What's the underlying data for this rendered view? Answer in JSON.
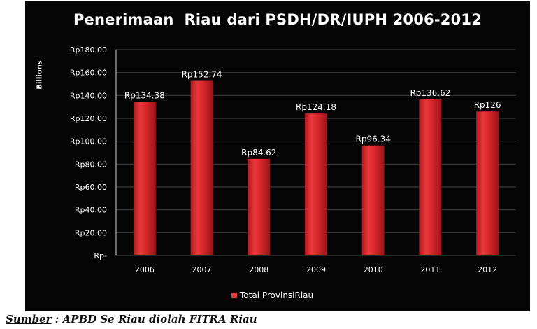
{
  "chart_data": {
    "type": "bar",
    "title": "Penerimaan  Riau dari PSDH/DR/IUPH 2006-2012",
    "y_unit": "Billions",
    "categories": [
      "2006",
      "2007",
      "2008",
      "2009",
      "2010",
      "2011",
      "2012"
    ],
    "series": [
      {
        "name": "Total ProvinsiRiau",
        "values": [
          134.38,
          152.74,
          84.62,
          124.18,
          96.34,
          136.62,
          126
        ],
        "labels": [
          "Rp134.38",
          "Rp152.74",
          "Rp84.62",
          "Rp124.18",
          "Rp96.34",
          "Rp136.62",
          "Rp126"
        ],
        "color": "#d8282c"
      }
    ],
    "ylim": [
      0,
      180
    ],
    "y_ticks": [
      0,
      20,
      40,
      60,
      80,
      100,
      120,
      140,
      160,
      180
    ],
    "y_tick_labels": [
      "Rp-",
      "Rp20.00",
      "Rp40.00",
      "Rp60.00",
      "Rp80.00",
      "Rp100.00",
      "Rp120.00",
      "Rp140.00",
      "Rp160.00",
      "Rp180.00"
    ],
    "grid": true,
    "legend_position": "bottom",
    "background_color": "#050505",
    "gridline_color": "#3a3a3a"
  },
  "source": {
    "label": "Sumber",
    "text": " : APBD Se Riau diolah FITRA Riau"
  }
}
